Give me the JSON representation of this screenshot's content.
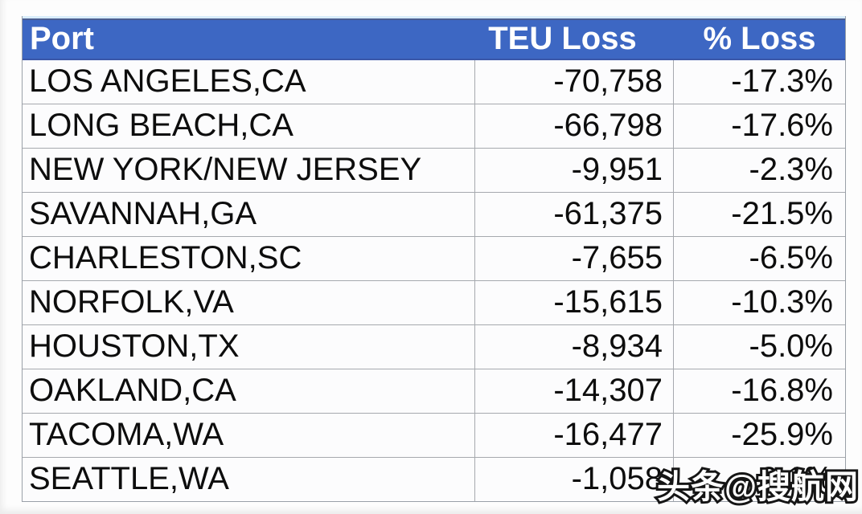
{
  "chart_data": {
    "type": "table",
    "headers": [
      "Port",
      "TEU Loss",
      "% Loss"
    ],
    "rows": [
      [
        "LOS ANGELES,CA",
        "-70,758",
        "-17.3%"
      ],
      [
        "LONG BEACH,CA",
        "-66,798",
        "-17.6%"
      ],
      [
        "NEW YORK/NEW JERSEY",
        "-9,951",
        "-2.3%"
      ],
      [
        "SAVANNAH,GA",
        "-61,375",
        "-21.5%"
      ],
      [
        "CHARLESTON,SC",
        "-7,655",
        "-6.5%"
      ],
      [
        "NORFOLK,VA",
        "-15,615",
        "-10.3%"
      ],
      [
        "HOUSTON,TX",
        "-8,934",
        "-5.0%"
      ],
      [
        "OAKLAND,CA",
        "-14,307",
        "-16.8%"
      ],
      [
        "TACOMA,WA",
        "-16,477",
        "-25.9%"
      ],
      [
        "SEATTLE,WA",
        "-1,058",
        "-2.1%"
      ]
    ],
    "layout_hints": {
      "header_alignment": [
        "left",
        "center",
        "center"
      ],
      "cell_alignment": [
        "left",
        "right",
        "right"
      ],
      "grid": true
    }
  },
  "colors": {
    "header_bg": "#3d67c3",
    "header_text": "#ffffff",
    "header_top_accent": "#d9edfb",
    "header_bottom_line": "#3a57a8",
    "grid_line": "#a6a9ae",
    "row_bg": "#fcfcfd",
    "cell_text": "#0d0d0d"
  },
  "watermark": {
    "text": "头条@搜航网"
  }
}
